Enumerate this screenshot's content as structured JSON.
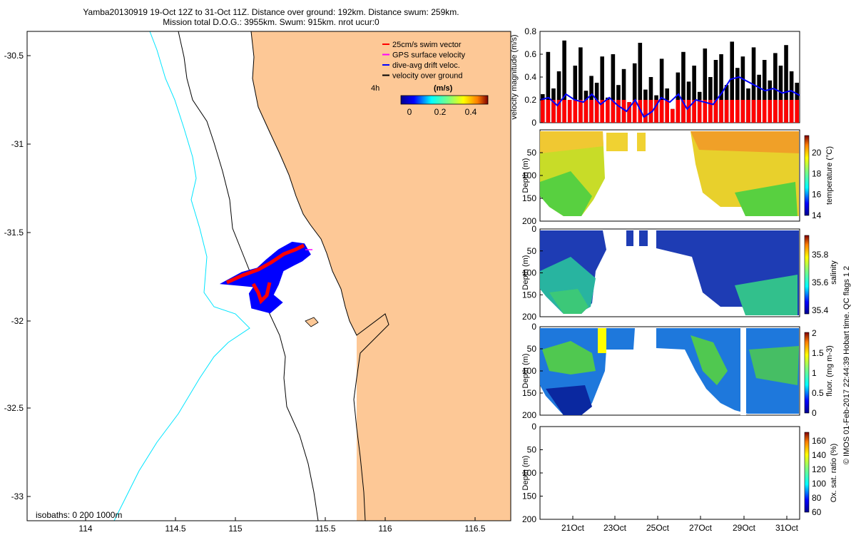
{
  "title": {
    "line1": "Yamba20130919 19-Oct 12Z to 31-Oct 11Z. Distance over ground: 192km. Distance swum: 259km.",
    "line2": "Mission total D.O.G.: 3955km. Swum: 915km. nrot ucur:0"
  },
  "map": {
    "x_ticks": [
      "114",
      "114.5",
      "115",
      "115.5",
      "116",
      "116.5"
    ],
    "y_ticks": [
      "-30.5",
      "-31",
      "-31.5",
      "-32",
      "-32.5",
      "-33"
    ],
    "isobaths_label": "isobaths: 0   200  1000m",
    "colors": {
      "land": "#fdc896",
      "isobath_1000": "#00e5ff",
      "swim": "#ff0000",
      "drift": "#0000ff",
      "gps": "#ff00ff"
    },
    "legend": {
      "items": [
        {
          "label": "25cm/s swim vector",
          "color": "#ff0000"
        },
        {
          "label": "GPS surface velocity",
          "color": "#ff00ff"
        },
        {
          "label": "dive-avg drift veloc.",
          "color": "#0000ff"
        },
        {
          "label": "velocity over ground",
          "color": "#000000"
        }
      ],
      "interval_label": "4h",
      "colorbar_title": "(m/s)",
      "colorbar_ticks": [
        "0",
        "0.2",
        "0.4"
      ]
    }
  },
  "chart_data": [
    {
      "type": "bar",
      "ylabel": "velocity magnitude (m/s)",
      "y_ticks": [
        "0.8",
        "0.6",
        "0.4",
        "0.2",
        "0"
      ],
      "ylim": [
        0,
        0.8
      ],
      "series": [
        {
          "values_note": "",
          "values": [
            0.25,
            0.62,
            0.3,
            0.45,
            0.72,
            0.2,
            0.5,
            0.66,
            0.28,
            0.41,
            0.35,
            0.58,
            0.22,
            0.6,
            0.33,
            0.47,
            0.18,
            0.52,
            0.7,
            0.29,
            0.4,
            0.24,
            0.56,
            0.3,
            0.12,
            0.44,
            0.62,
            0.36,
            0.5,
            0.27,
            0.65,
            0.4,
            0.55,
            0.6,
            0.33,
            0.71,
            0.48,
            0.58,
            0.3,
            0.66,
            0.42,
            0.55,
            0.37,
            0.61,
            0.5,
            0.68,
            0.45,
            0.35
          ]
        },
        {
          "name": "",
          "values": [
            0.2,
            0.22,
            0.15,
            0.25,
            0.2,
            0.18,
            0.25,
            0.16,
            0.22,
            0.15,
            0.1,
            0.2,
            0.05,
            0.1,
            0.22,
            0.18,
            0.25,
            0.12,
            0.2,
            0.18,
            0.16,
            0.26,
            0.38,
            0.4,
            0.36,
            0.32,
            0.28,
            0.3,
            0.26,
            0.28,
            0.24
          ]
        }
      ]
    },
    {
      "type": "heatmap",
      "ylabel": "Depth (m)",
      "colorbar_label": "temperature (°C)",
      "y_ticks": [
        "50",
        "100",
        "150",
        "200"
      ],
      "colorbar_ticks": [
        "20",
        "18",
        "16",
        "14"
      ]
    },
    {
      "type": "heatmap",
      "ylabel": "Depth (m)",
      "colorbar_label": "salinity",
      "y_ticks": [
        "0",
        "50",
        "100",
        "150",
        "200"
      ],
      "colorbar_ticks": [
        "35.8",
        "35.6",
        "35.4"
      ]
    },
    {
      "type": "heatmap",
      "ylabel": "Depth (m)",
      "colorbar_label": "fluor. (mg m-3)",
      "y_ticks": [
        "0",
        "50",
        "100",
        "150",
        "200"
      ],
      "colorbar_ticks": [
        "2",
        "1.5",
        "1",
        "0.5",
        "0"
      ]
    },
    {
      "type": "heatmap",
      "ylabel": "Depth (m)",
      "colorbar_label": "Ox. sat. ratio (%)",
      "y_ticks": [
        "0",
        "50",
        "100",
        "150",
        "200"
      ],
      "colorbar_ticks": [
        "160",
        "140",
        "120",
        "100",
        "80",
        "60"
      ]
    }
  ],
  "x_date_ticks": [
    "21Oct",
    "23Oct",
    "25Oct",
    "27Oct",
    "29Oct",
    "31Oct"
  ],
  "credit": "© IMOS 01-Feb-2017 22:44:39 Hobart time. QC flags 1  2"
}
